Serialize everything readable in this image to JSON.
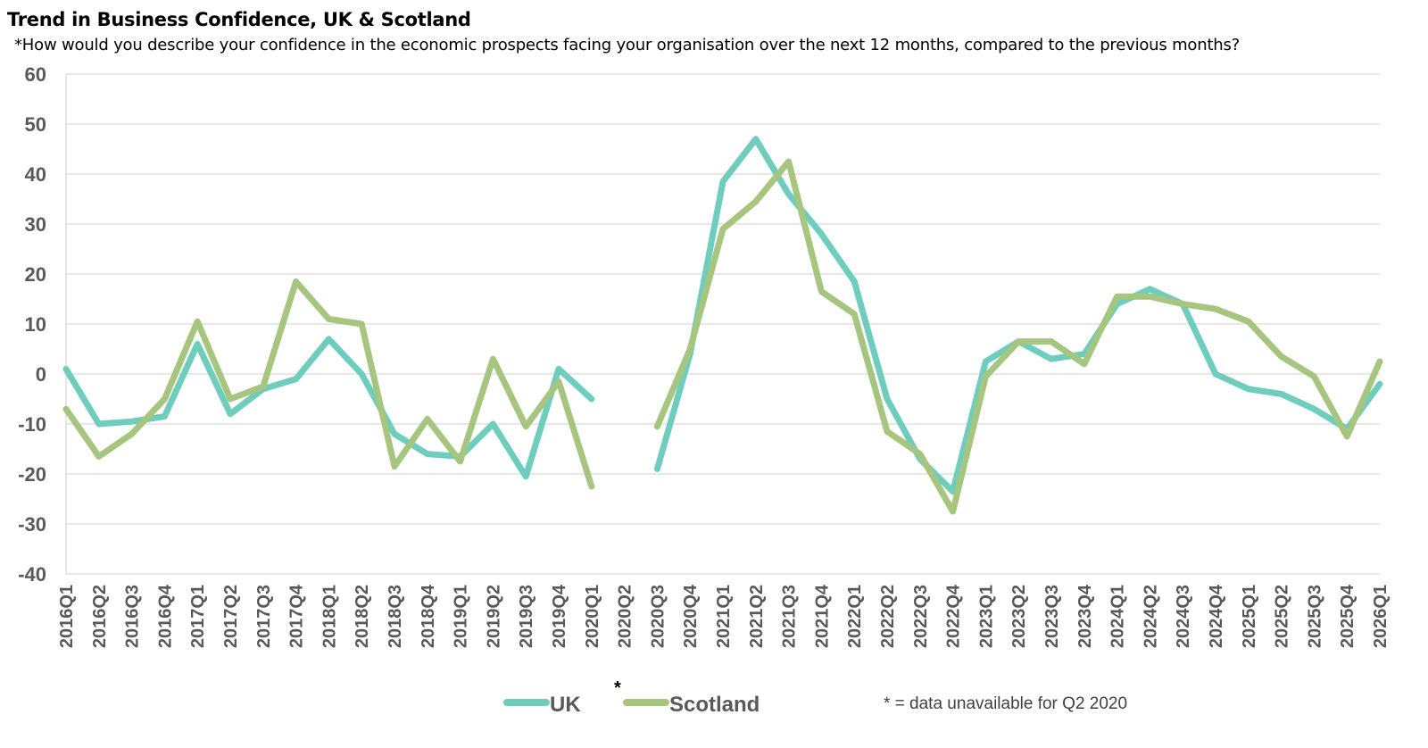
{
  "chart_data": {
    "type": "line",
    "title": "Trend in Business Confidence, UK & Scotland",
    "subtitle": "*How would you describe your confidence in the economic prospects facing your organisation over the next 12 months, compared to the previous months?",
    "categories": [
      "2016Q1",
      "2016Q2",
      "2016Q3",
      "2016Q4",
      "2017Q1",
      "2017Q2",
      "2017Q3",
      "2017Q4",
      "2018Q1",
      "2018Q2",
      "2018Q3",
      "2018Q4",
      "2019Q1",
      "2019Q2",
      "2019Q3",
      "2019Q4",
      "2020Q1",
      "2020Q2",
      "2020Q3",
      "2020Q4",
      "2021Q1",
      "2021Q2",
      "2021Q3",
      "2021Q4",
      "2022Q1",
      "2022Q2",
      "2022Q3",
      "2022Q4",
      "2023Q1",
      "2023Q2",
      "2023Q3",
      "2023Q4",
      "2024Q1",
      "2024Q2",
      "2024Q3",
      "2024Q4",
      "2025Q1",
      "2025Q2",
      "2025Q3",
      "2025Q4",
      "2026Q1"
    ],
    "series": [
      {
        "name": "UK",
        "color": "#6fcdbe",
        "values": [
          1,
          -10,
          -9.5,
          -8.5,
          6,
          -8,
          -3,
          -1,
          7,
          0,
          -12,
          -16,
          -16.5,
          -10,
          -20.5,
          1,
          -5,
          null,
          -19,
          4,
          38.5,
          47,
          36,
          28,
          18.5,
          -5,
          -17,
          -23.5,
          2.5,
          6.5,
          3,
          4,
          14,
          17,
          14,
          0,
          -3,
          -4,
          -7,
          -11,
          -2
        ]
      },
      {
        "name": "Scotland",
        "color": "#a6c57e",
        "values": [
          -7,
          -16.5,
          -12,
          -5,
          10.5,
          -5,
          -2.5,
          18.5,
          11,
          10,
          -18.5,
          -9,
          -17.5,
          3,
          -10.5,
          -1.5,
          -22.5,
          null,
          -10.5,
          5,
          29,
          34.5,
          42.5,
          16.5,
          12,
          -11.5,
          -16,
          -27.5,
          -0.5,
          6.5,
          6.5,
          2,
          15.5,
          15.5,
          14,
          13,
          10.5,
          3.5,
          -0.5,
          -12.5,
          2.5
        ]
      }
    ],
    "ylim": [
      -40,
      60
    ],
    "yticks": [
      60,
      50,
      40,
      30,
      20,
      10,
      0,
      -10,
      -20,
      -30,
      -40
    ],
    "grid": true,
    "legend": {
      "position": "bottom",
      "entries": [
        "UK",
        "Scotland"
      ]
    },
    "annotations": {
      "gap_marker": "*",
      "note": "* = data unavailable for Q2 2020"
    }
  },
  "colors": {
    "grid": "#d9d9d9",
    "axis_text": "#595959"
  }
}
